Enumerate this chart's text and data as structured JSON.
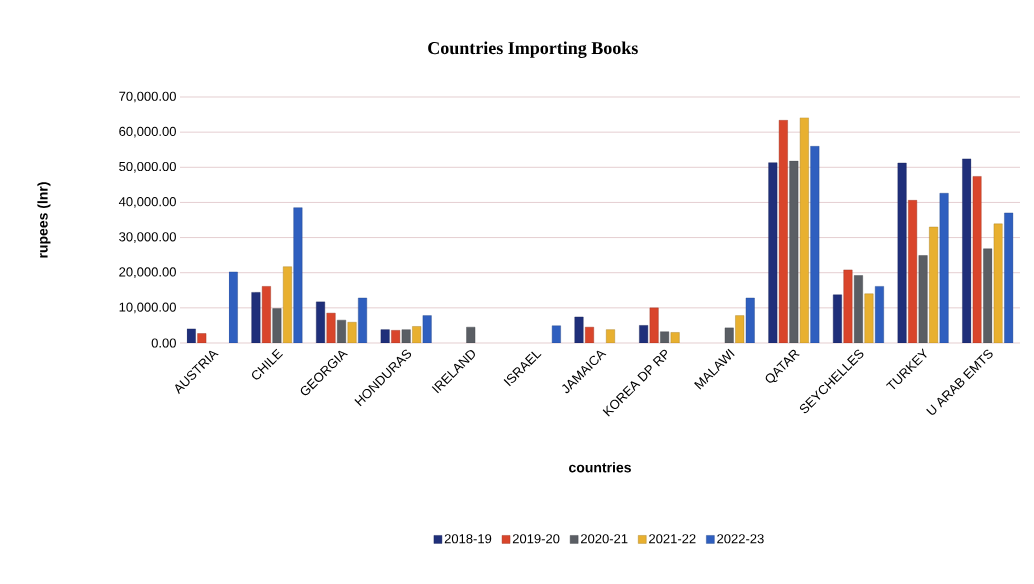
{
  "chart_data": {
    "type": "bar",
    "title": "Countries Importing Books",
    "xlabel": "countries",
    "ylabel": "rupees (lnr)",
    "categories": [
      "AUSTRIA",
      "CHILE",
      "GEORGIA",
      "HONDURAS",
      "IRELAND",
      "ISRAEL",
      "JAMAICA",
      "KOREA DP RP",
      "MALAWI",
      "QATAR",
      "SEYCHELLES",
      "TURKEY",
      "U ARAB EMTS"
    ],
    "series": [
      {
        "name": "2018-19",
        "color": "#1f2f7a",
        "values": [
          4000,
          14400,
          11700,
          3800,
          null,
          null,
          7400,
          5000,
          null,
          51300,
          13700,
          51200,
          52400
        ]
      },
      {
        "name": "2019-20",
        "color": "#d9452b",
        "values": [
          2700,
          16100,
          8500,
          3600,
          null,
          null,
          4500,
          10000,
          null,
          63400,
          20800,
          40600,
          47400
        ]
      },
      {
        "name": "2020-21",
        "color": "#5a5e64",
        "values": [
          null,
          9800,
          6500,
          3800,
          4500,
          null,
          null,
          3200,
          4300,
          51800,
          19200,
          24900,
          26800
        ]
      },
      {
        "name": "2021-22",
        "color": "#e8b030",
        "values": [
          null,
          21700,
          5900,
          4700,
          null,
          null,
          3800,
          3000,
          7800,
          64100,
          14000,
          33000,
          33900
        ]
      },
      {
        "name": "2022-23",
        "color": "#2f5fbf",
        "values": [
          20200,
          38500,
          12800,
          7800,
          null,
          4900,
          null,
          null,
          12800,
          56000,
          16100,
          42600,
          37000
        ]
      }
    ],
    "ylim": [
      0,
      70000
    ],
    "yticks": [
      {
        "value": 0,
        "label": "0.00"
      },
      {
        "value": 10000,
        "label": "10,000.00"
      },
      {
        "value": 20000,
        "label": "20,000.00"
      },
      {
        "value": 30000,
        "label": "30,000.00"
      },
      {
        "value": 40000,
        "label": "40,000.00"
      },
      {
        "value": 50000,
        "label": "50,000.00"
      },
      {
        "value": 60000,
        "label": "60,000.00"
      },
      {
        "value": 70000,
        "label": "70,000.00"
      }
    ],
    "grid": "y",
    "legend": "bottom"
  }
}
